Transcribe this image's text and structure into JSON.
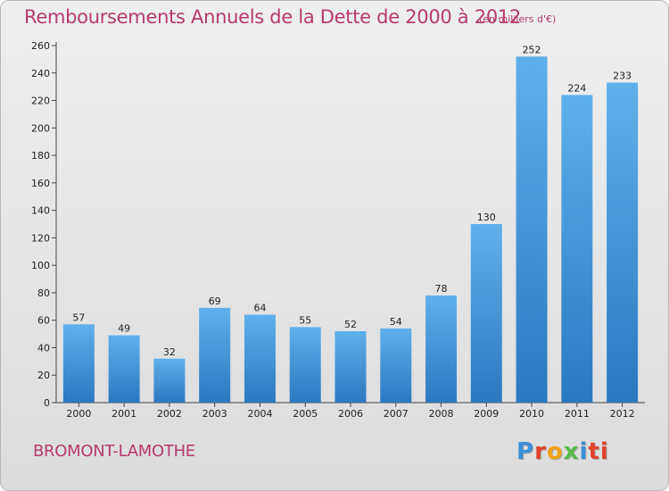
{
  "chart_data": {
    "type": "bar",
    "title": "Remboursements Annuels de la Dette de 2000 à 2012",
    "subtitle": "(en milliers d'€)",
    "categories": [
      "2000",
      "2001",
      "2002",
      "2003",
      "2004",
      "2005",
      "2006",
      "2007",
      "2008",
      "2009",
      "2010",
      "2011",
      "2012"
    ],
    "values": [
      57,
      49,
      32,
      69,
      64,
      55,
      52,
      54,
      78,
      130,
      252,
      224,
      233
    ],
    "ylim": [
      0,
      260
    ],
    "yticks": [
      0,
      20,
      40,
      60,
      80,
      100,
      120,
      140,
      160,
      180,
      200,
      220,
      240,
      260
    ],
    "grid": false,
    "bar_color": "#3d8fd4",
    "title_color": "#b53a6e"
  },
  "commune": "BROMONT-LAMOTHE",
  "logo": {
    "letters": [
      "P",
      "r",
      "o",
      "x",
      "i",
      "ti"
    ]
  }
}
